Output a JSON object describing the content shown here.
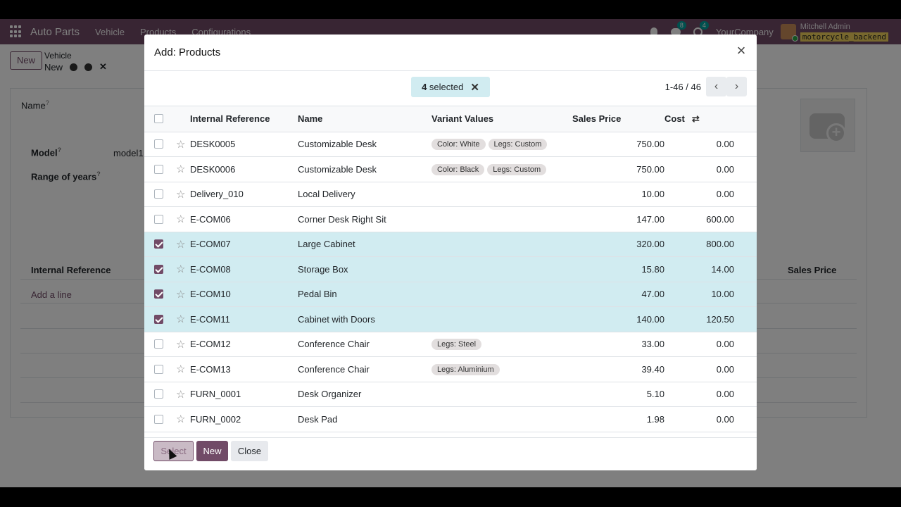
{
  "navbar": {
    "brand": "Auto Parts",
    "menu": [
      "Vehicle",
      "Products",
      "Configurations"
    ],
    "chat_count": "8",
    "activity_count": "4",
    "company": "YourCompany",
    "user_name": "Mitchell Admin",
    "database": "motorcycle_backend"
  },
  "control": {
    "new_label": "New",
    "breadcrumb_parent": "Vehicle",
    "breadcrumb_current": "New"
  },
  "form": {
    "name_label": "Name",
    "model_label": "Model",
    "model_value": "model1",
    "range_label": "Range of years",
    "col_internal_ref": "Internal Reference",
    "col_sales_price": "Sales Price",
    "add_line": "Add a line",
    "help_mark": "?"
  },
  "dialog": {
    "title": "Add: Products",
    "selected_count": "4",
    "selected_suffix": "selected",
    "pager": "1-46 / 46",
    "columns": {
      "ref": "Internal Reference",
      "name": "Name",
      "variants": "Variant Values",
      "price": "Sales Price",
      "cost": "Cost"
    },
    "rows": [
      {
        "ref": "DESK0005",
        "name": "Customizable Desk",
        "variants": [
          "Color: White",
          "Legs: Custom"
        ],
        "price": "750.00",
        "cost": "0.00",
        "selected": false
      },
      {
        "ref": "DESK0006",
        "name": "Customizable Desk",
        "variants": [
          "Color: Black",
          "Legs: Custom"
        ],
        "price": "750.00",
        "cost": "0.00",
        "selected": false
      },
      {
        "ref": "Delivery_010",
        "name": "Local Delivery",
        "variants": [],
        "price": "10.00",
        "cost": "0.00",
        "selected": false
      },
      {
        "ref": "E-COM06",
        "name": "Corner Desk Right Sit",
        "variants": [],
        "price": "147.00",
        "cost": "600.00",
        "selected": false
      },
      {
        "ref": "E-COM07",
        "name": "Large Cabinet",
        "variants": [],
        "price": "320.00",
        "cost": "800.00",
        "selected": true
      },
      {
        "ref": "E-COM08",
        "name": "Storage Box",
        "variants": [],
        "price": "15.80",
        "cost": "14.00",
        "selected": true
      },
      {
        "ref": "E-COM10",
        "name": "Pedal Bin",
        "variants": [],
        "price": "47.00",
        "cost": "10.00",
        "selected": true
      },
      {
        "ref": "E-COM11",
        "name": "Cabinet with Doors",
        "variants": [],
        "price": "140.00",
        "cost": "120.50",
        "selected": true
      },
      {
        "ref": "E-COM12",
        "name": "Conference Chair",
        "variants": [
          "Legs: Steel"
        ],
        "price": "33.00",
        "cost": "0.00",
        "selected": false
      },
      {
        "ref": "E-COM13",
        "name": "Conference Chair",
        "variants": [
          "Legs: Aluminium"
        ],
        "price": "39.40",
        "cost": "0.00",
        "selected": false
      },
      {
        "ref": "FURN_0001",
        "name": "Desk Organizer",
        "variants": [],
        "price": "5.10",
        "cost": "0.00",
        "selected": false
      },
      {
        "ref": "FURN_0002",
        "name": "Desk Pad",
        "variants": [],
        "price": "1.98",
        "cost": "0.00",
        "selected": false
      }
    ],
    "buttons": {
      "select": "Select",
      "new": "New",
      "close": "Close"
    }
  },
  "colors": {
    "brand": "#714b67",
    "selected_row": "#d1ecf1"
  }
}
